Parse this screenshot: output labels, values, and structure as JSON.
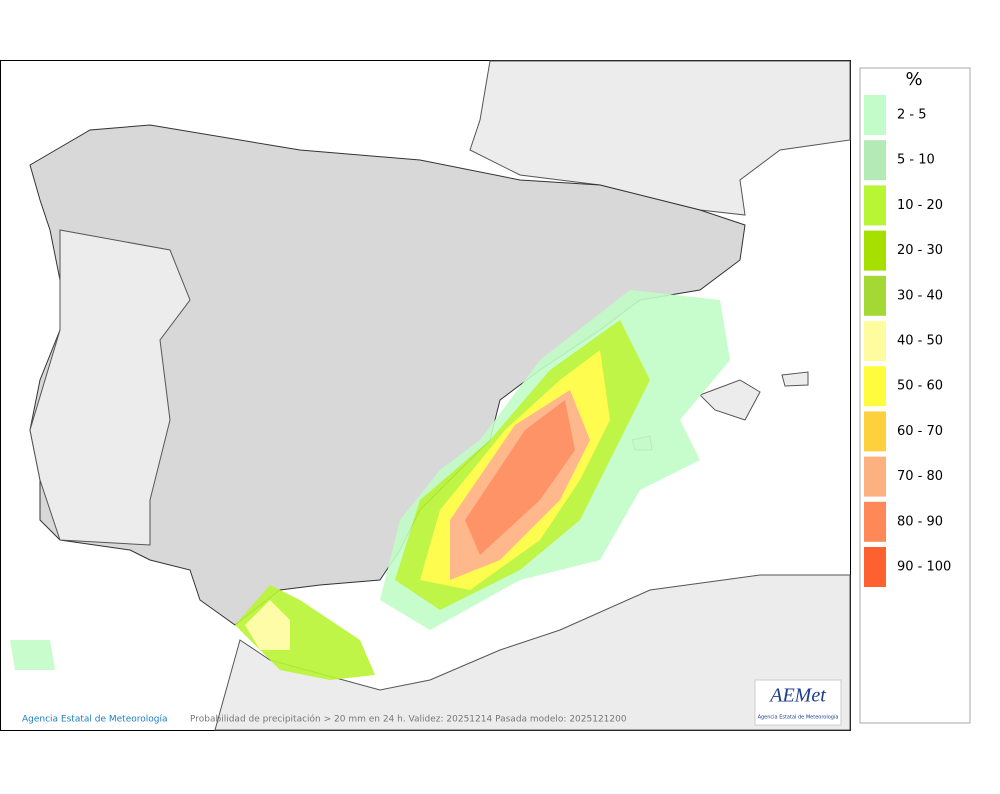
{
  "legend": {
    "title": "%",
    "items": [
      {
        "label": "2 - 5",
        "color": "#c2fcc8"
      },
      {
        "label": "5 - 10",
        "color": "#b3eab5"
      },
      {
        "label": "10 - 20",
        "color": "#b8f534"
      },
      {
        "label": "20 - 30",
        "color": "#a5e000"
      },
      {
        "label": "30 - 40",
        "color": "#a4d834"
      },
      {
        "label": "40 - 50",
        "color": "#fefc9e"
      },
      {
        "label": "50 - 60",
        "color": "#fefc3c"
      },
      {
        "label": "60 - 70",
        "color": "#fed03c"
      },
      {
        "label": "70 - 80",
        "color": "#feb180"
      },
      {
        "label": "80 - 90",
        "color": "#fe8858"
      },
      {
        "label": "90 - 100",
        "color": "#fe6030"
      }
    ]
  },
  "footer": {
    "copyright": "Agencia Estatal de Meteorología",
    "caption": "Probabilidad de precipitación > 20 mm en 24 h. Validez: 20251214 Pasada modelo: 2025121200"
  },
  "logo": {
    "name": "AEMet",
    "subtitle": "Agencia Estatal de Meteorología"
  }
}
